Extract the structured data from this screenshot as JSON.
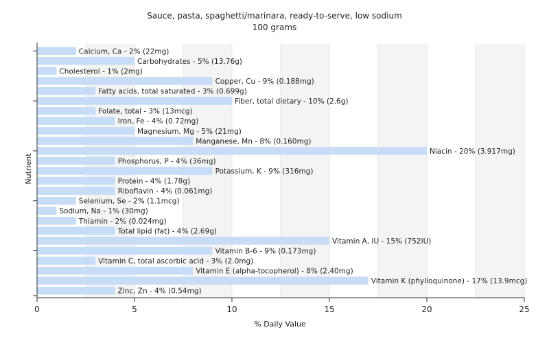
{
  "chart_data": {
    "type": "bar",
    "orientation": "horizontal",
    "title": "Sauce, pasta, spaghetti/marinara, ready-to-serve, low sodium",
    "subtitle": "100 grams",
    "xlabel": "% Daily Value",
    "ylabel": "Nutrient",
    "xlim": [
      0,
      25
    ],
    "xticks": [
      0,
      5,
      10,
      15,
      20,
      25
    ],
    "grid": true,
    "bar_color": "#c6dcf7",
    "categories": [
      "Calcium, Ca",
      "Carbohydrates",
      "Cholesterol",
      "Copper, Cu",
      "Fatty acids, total saturated",
      "Fiber, total dietary",
      "Folate, total",
      "Iron, Fe",
      "Magnesium, Mg",
      "Manganese, Mn",
      "Niacin",
      "Phosphorus, P",
      "Potassium, K",
      "Protein",
      "Riboflavin",
      "Selenium, Se",
      "Sodium, Na",
      "Thiamin",
      "Total lipid (fat)",
      "Vitamin A, IU",
      "Vitamin B-6",
      "Vitamin C, total ascorbic acid",
      "Vitamin E (alpha-tocopherol)",
      "Vitamin K (phylloquinone)",
      "Zinc, Zn"
    ],
    "values": [
      2,
      5,
      1,
      9,
      3,
      10,
      3,
      4,
      5,
      8,
      20,
      4,
      9,
      4,
      4,
      2,
      1,
      2,
      4,
      15,
      9,
      3,
      8,
      17,
      4
    ],
    "labels": [
      "Calcium, Ca - 2% (22mg)",
      "Carbohydrates - 5% (13.76g)",
      "Cholesterol - 1% (2mg)",
      "Copper, Cu - 9% (0.188mg)",
      "Fatty acids, total saturated - 3% (0.699g)",
      "Fiber, total dietary - 10% (2.6g)",
      "Folate, total - 3% (13mcg)",
      "Iron, Fe - 4% (0.72mg)",
      "Magnesium, Mg - 5% (21mg)",
      "Manganese, Mn - 8% (0.160mg)",
      "Niacin - 20% (3.917mg)",
      "Phosphorus, P - 4% (36mg)",
      "Potassium, K - 9% (316mg)",
      "Protein - 4% (1.78g)",
      "Riboflavin - 4% (0.061mg)",
      "Selenium, Se - 2% (1.1mcg)",
      "Sodium, Na - 1% (30mg)",
      "Thiamin - 2% (0.024mg)",
      "Total lipid (fat) - 4% (2.69g)",
      "Vitamin A, IU - 15% (752IU)",
      "Vitamin B-6 - 9% (0.173mg)",
      "Vitamin C, total ascorbic acid - 3% (2.0mg)",
      "Vitamin E (alpha-tocopherol) - 8% (2.40mg)",
      "Vitamin K (phylloquinone) - 17% (13.9mcg)",
      "Zinc, Zn - 4% (0.54mg)"
    ]
  }
}
